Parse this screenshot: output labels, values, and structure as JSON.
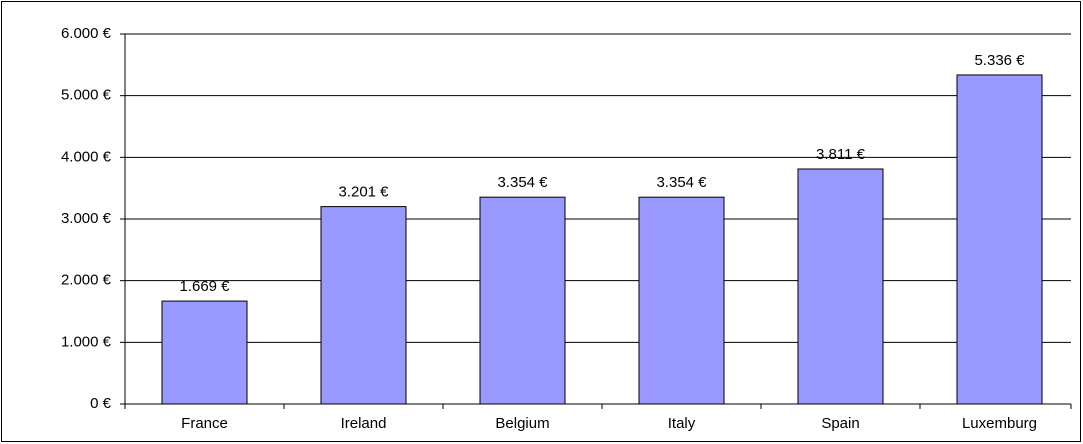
{
  "chart_data": {
    "type": "bar",
    "categories": [
      "France",
      "Ireland",
      "Belgium",
      "Italy",
      "Spain",
      "Luxemburg"
    ],
    "values": [
      1669,
      3201,
      3354,
      3354,
      3811,
      5336
    ],
    "value_labels": [
      "1.669 €",
      "3.201 €",
      "3.354 €",
      "3.354 €",
      "3.811 €",
      "5.336 €"
    ],
    "color": "#9999ff",
    "ylim": [
      0,
      6000
    ],
    "yticks": [
      {
        "value": 0,
        "label": "0 €"
      },
      {
        "value": 1000,
        "label": "1.000 €"
      },
      {
        "value": 2000,
        "label": "2.000 €"
      },
      {
        "value": 3000,
        "label": "3.000 €"
      },
      {
        "value": 4000,
        "label": "4.000 €"
      },
      {
        "value": 5000,
        "label": "5.000 €"
      },
      {
        "value": 6000,
        "label": "6.000 €"
      }
    ],
    "grid": true
  }
}
